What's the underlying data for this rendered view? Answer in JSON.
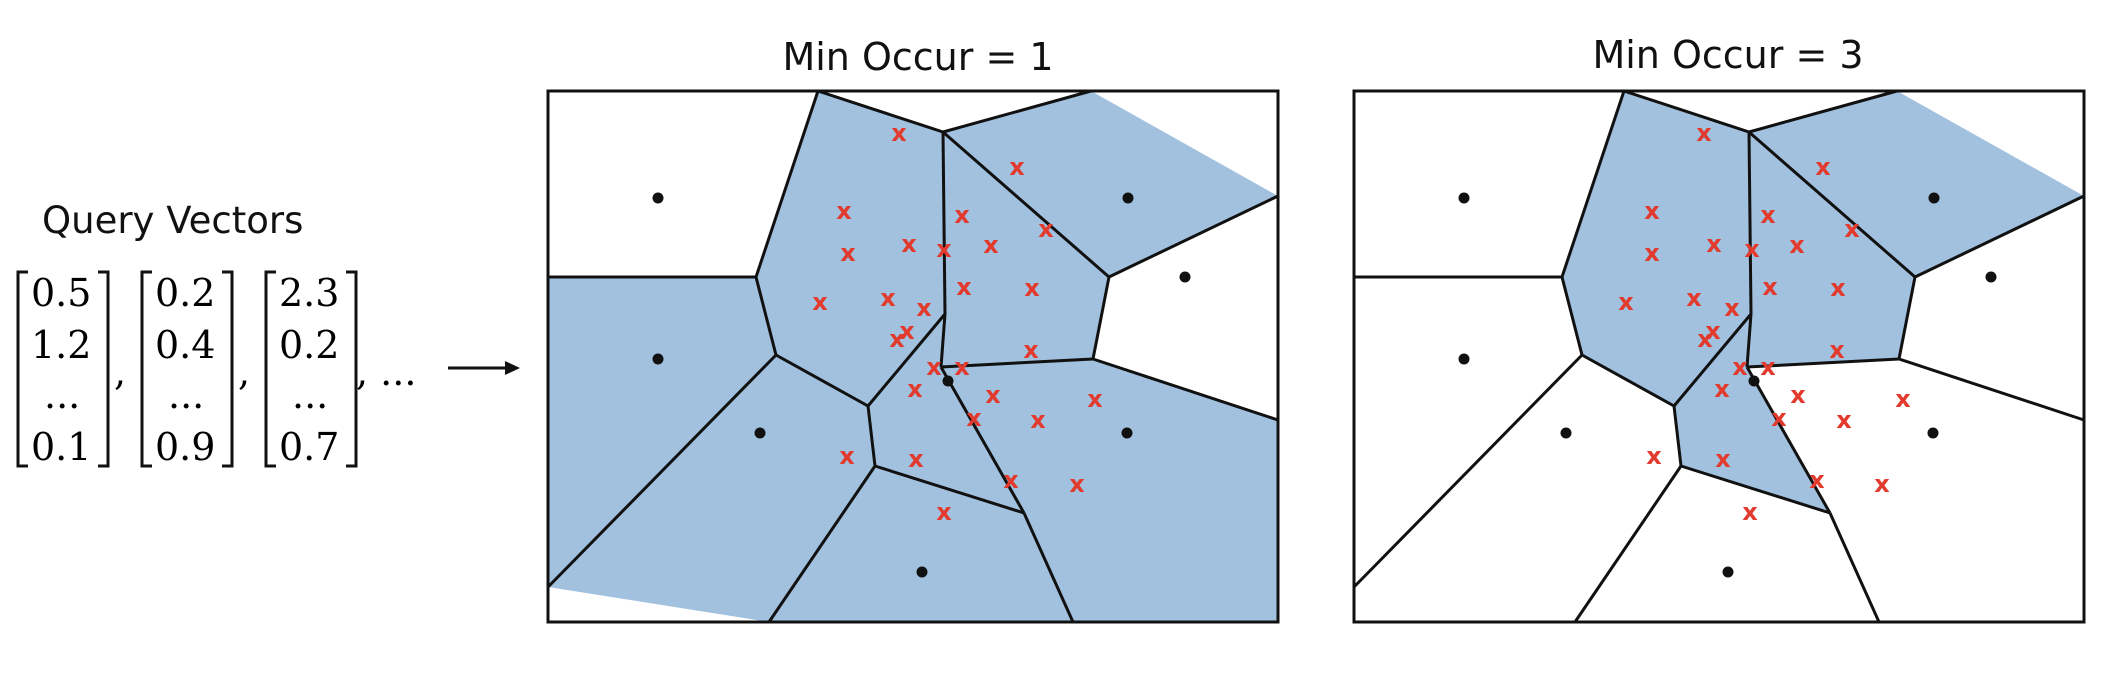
{
  "left": {
    "label": "Query Vectors",
    "vectors": [
      [
        "0.5",
        "1.2",
        "...",
        "0.1"
      ],
      [
        "0.2",
        "0.4",
        "...",
        "0.9"
      ],
      [
        "2.3",
        "0.2",
        "...",
        "0.7"
      ]
    ],
    "separator": ",",
    "ellipsis": ", ..."
  },
  "panels": [
    {
      "title": "Min Occur = 1"
    },
    {
      "title": "Min Occur = 3"
    }
  ],
  "colors": {
    "cell_fill": "#a2c1df",
    "edge": "#111111",
    "query_mark": "#e23b2e",
    "centroid": "#111111"
  },
  "marker": "x"
}
